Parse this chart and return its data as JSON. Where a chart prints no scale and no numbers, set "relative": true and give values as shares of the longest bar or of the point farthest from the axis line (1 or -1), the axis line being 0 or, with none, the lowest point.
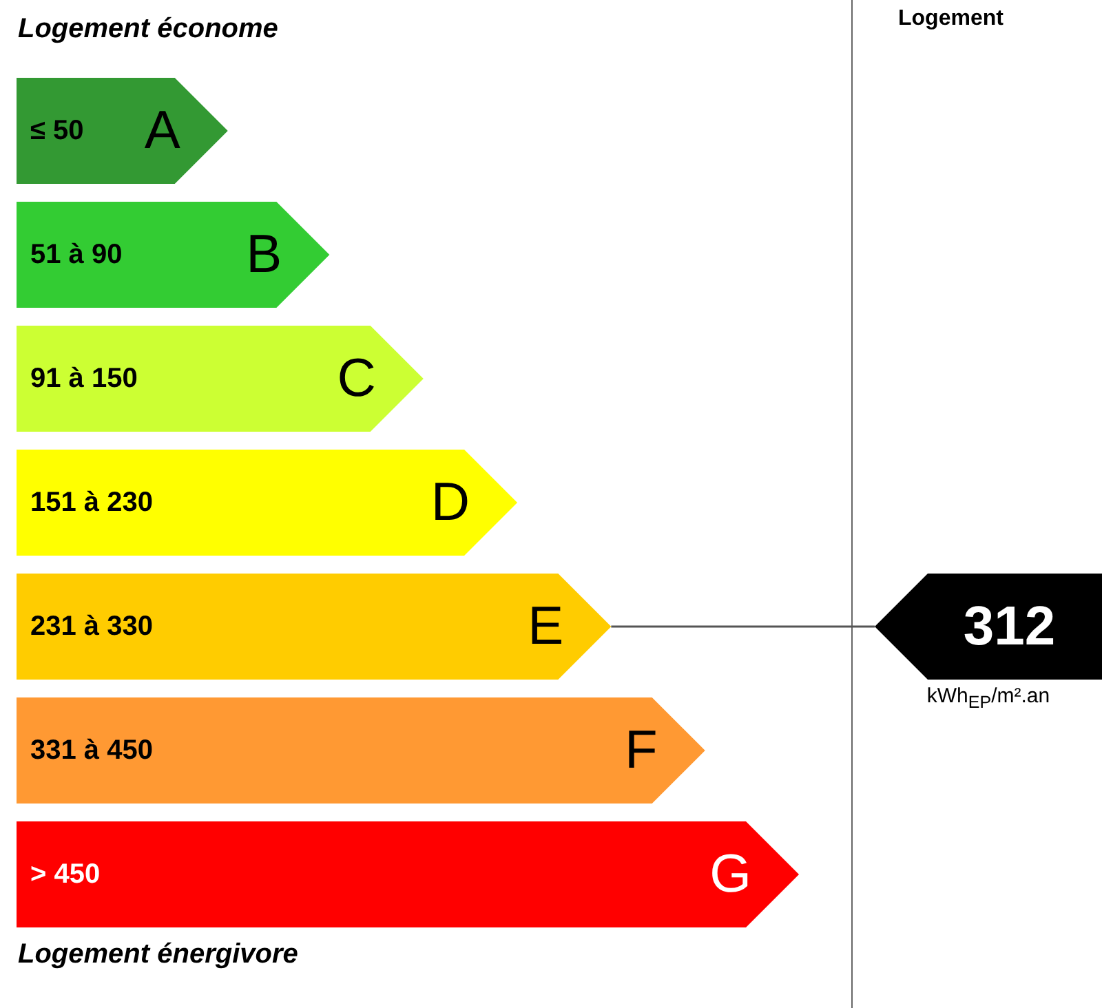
{
  "chart_data": {
    "type": "bar",
    "orientation": "horizontal",
    "relative": true,
    "title": "Logement économe",
    "categories": [
      "≤ 50",
      "51 à 90",
      "91 à 150",
      "151 à 230",
      "231 à 330",
      "331 à 450",
      "> 450"
    ],
    "values": [
      0.27,
      0.4,
      0.52,
      0.64,
      0.76,
      0.88,
      1
    ],
    "colors": [
      "#339933",
      "#33cc33",
      "#ccff33",
      "#ffff00",
      "#ffcc00",
      "#ff9933",
      "#ff0000"
    ],
    "annotations": [
      {
        "text": "A",
        "x": 0.27,
        "y": "≤ 50"
      },
      {
        "text": "B",
        "x": 0.4,
        "y": "51 à 90"
      },
      {
        "text": "C",
        "x": 0.52,
        "y": "91 à 150"
      },
      {
        "text": "D",
        "x": 0.64,
        "y": "151 à 230"
      },
      {
        "text": "E",
        "x": 0.76,
        "y": "231 à 330"
      },
      {
        "text": "F",
        "x": 0.88,
        "y": "331 à 450"
      },
      {
        "text": "G",
        "x": 1,
        "y": "> 450"
      },
      "Logement énergivore",
      "Logement",
      "kWh$_{EP}$/m².an"
    ],
    "ref_lines": [
      {
        "axis": "y",
        "value": "231 à 330",
        "label": "312"
      }
    ]
  }
}
